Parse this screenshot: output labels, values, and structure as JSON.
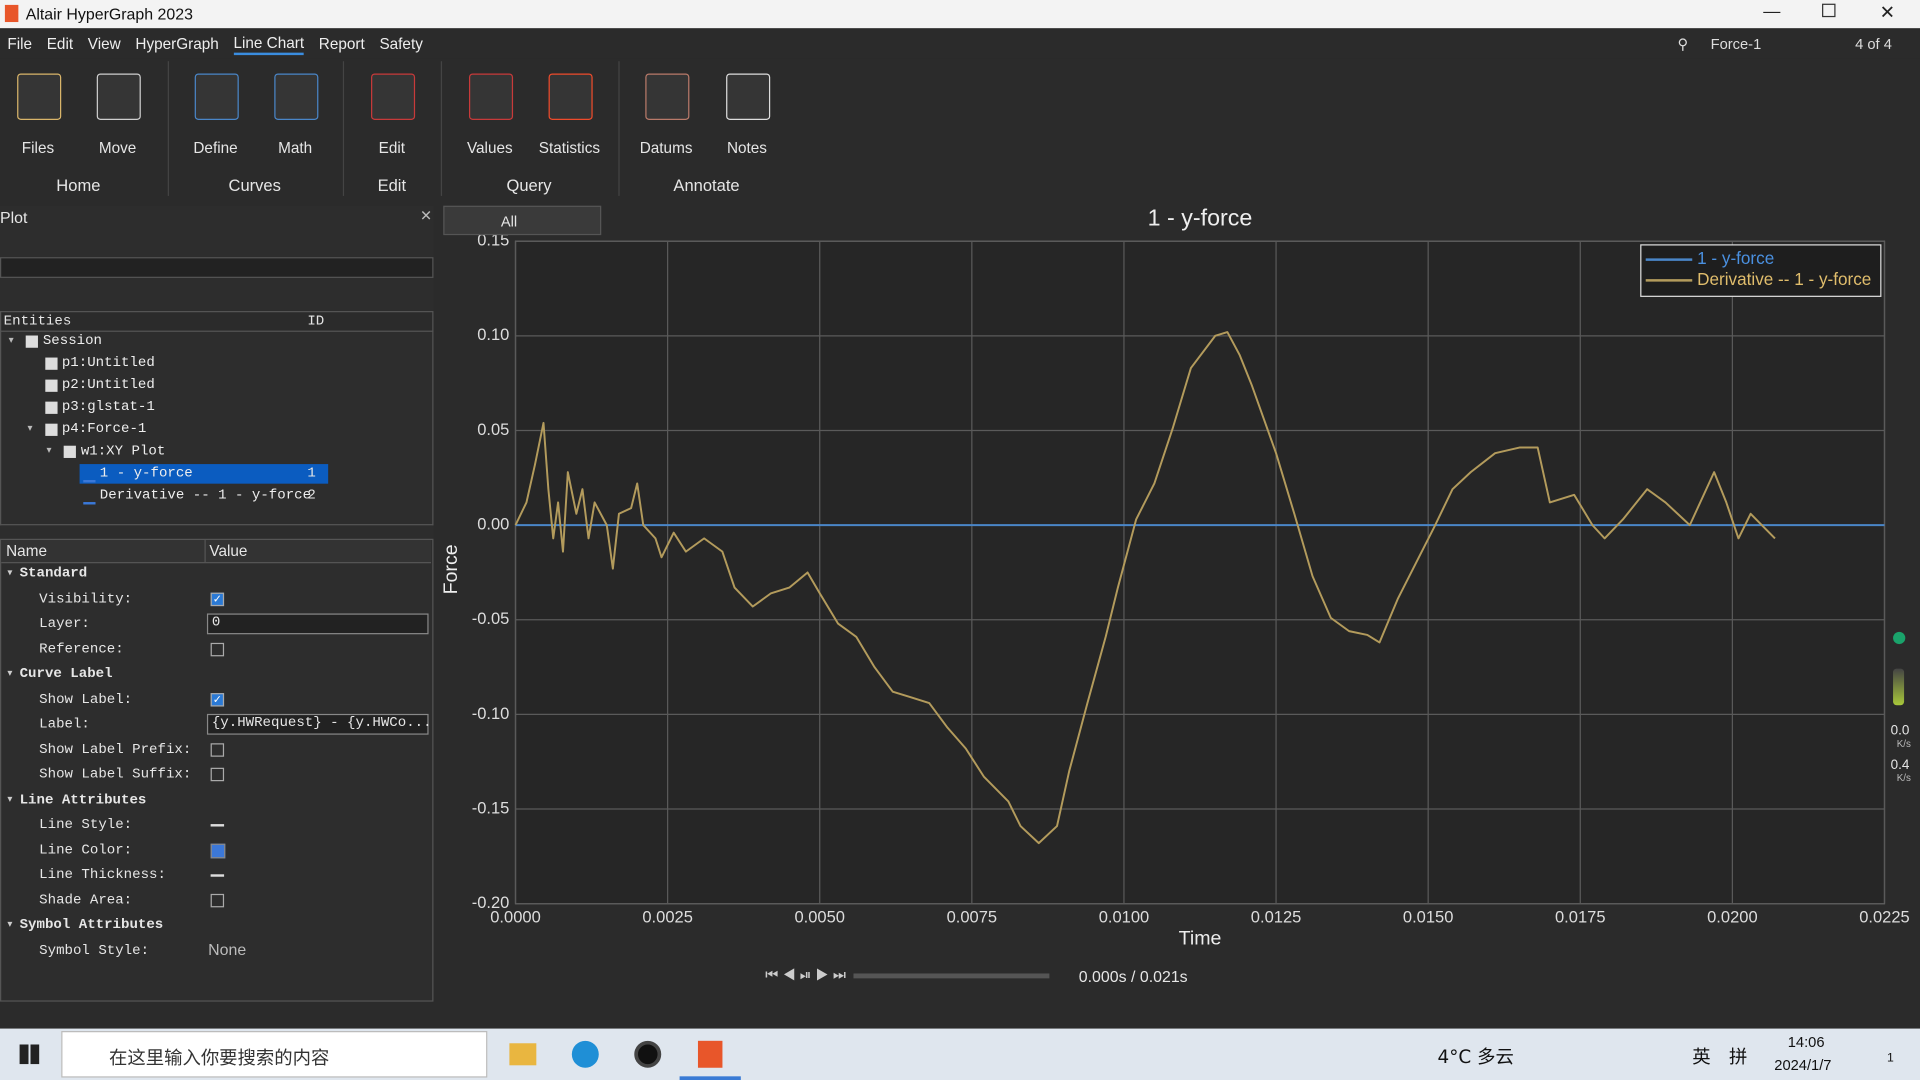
{
  "title_bar": {
    "title": "Altair HyperGraph 2023"
  },
  "menu": [
    "File",
    "Edit",
    "View",
    "HyperGraph",
    "Line Chart",
    "Report",
    "Safety"
  ],
  "menu_active": "Line Chart",
  "page_selector": {
    "page": "Force-1",
    "count": "4 of 4"
  },
  "ribbon": [
    {
      "label": "Home",
      "tools": [
        "Files",
        "Move"
      ]
    },
    {
      "label": "Curves",
      "tools": [
        "Define",
        "Math"
      ]
    },
    {
      "label": "Edit",
      "tools": [
        "Edit"
      ]
    },
    {
      "label": "Query",
      "tools": [
        "Values",
        "Statistics"
      ]
    },
    {
      "label": "Annotate",
      "tools": [
        "Datums",
        "Notes"
      ]
    }
  ],
  "panel": {
    "title": "Plot",
    "tree_header": {
      "entities": "Entities",
      "id": "ID"
    },
    "tree": [
      {
        "label": "Session",
        "children": [
          {
            "label": "p1:Untitled"
          },
          {
            "label": "p2:Untitled"
          },
          {
            "label": "p3:glstat-1"
          },
          {
            "label": "p4:Force-1",
            "children": [
              {
                "label": "w1:XY Plot",
                "children": [
                  {
                    "label": "1 - y-force",
                    "id": "1",
                    "selected": true
                  },
                  {
                    "label": "Derivative -- 1 - y-force",
                    "id": "2"
                  }
                ]
              }
            ]
          }
        ]
      }
    ],
    "properties": {
      "headers": [
        "Name",
        "Value"
      ],
      "sections": [
        {
          "title": "Standard",
          "rows": [
            {
              "name": "Visibility:",
              "checked": true
            },
            {
              "name": "Layer:",
              "value": "0"
            },
            {
              "name": "Reference:",
              "checked": false
            }
          ]
        },
        {
          "title": "Curve Label",
          "rows": [
            {
              "name": "Show Label:",
              "checked": true
            },
            {
              "name": "Label:",
              "value": "{y.HWRequest} - {y.HWCo..."
            },
            {
              "name": "Show Label Prefix:",
              "checked": false
            },
            {
              "name": "Show Label Suffix:",
              "checked": false
            }
          ]
        },
        {
          "title": "Line Attributes",
          "rows": [
            {
              "name": "Line Style:"
            },
            {
              "name": "Line Color:",
              "color": "#3c78d8"
            },
            {
              "name": "Line Thickness:"
            },
            {
              "name": "Shade Area:",
              "checked": false
            }
          ]
        },
        {
          "title": "Symbol Attributes",
          "rows": [
            {
              "name": "Symbol Style:",
              "value": "None"
            }
          ]
        }
      ]
    }
  },
  "filter": "All",
  "chart_data": {
    "type": "line",
    "title": "1 - y-force",
    "x_label": "Time",
    "y_label": "Force",
    "xlim": [
      0,
      0.0225
    ],
    "ylim": [
      -0.2,
      0.15
    ],
    "xticks": [
      {
        "value": 0,
        "label": "0.0000"
      },
      {
        "value": 0.0025,
        "label": "0.0025"
      },
      {
        "value": 0.005,
        "label": "0.0050"
      },
      {
        "value": 0.0075,
        "label": "0.0075"
      },
      {
        "value": 0.01,
        "label": "0.0100"
      },
      {
        "value": 0.0125,
        "label": "0.0125"
      },
      {
        "value": 0.015,
        "label": "0.0150"
      },
      {
        "value": 0.0175,
        "label": "0.0175"
      },
      {
        "value": 0.02,
        "label": "0.0200"
      },
      {
        "value": 0.0225,
        "label": "0.0225"
      }
    ],
    "yticks": [
      {
        "value": -0.2,
        "label": "-0.20"
      },
      -0.15,
      {
        "value": -0.1,
        "label": "-0.10"
      },
      -0.05,
      {
        "value": 0,
        "label": "0.00"
      },
      0.05,
      {
        "value": 0.1,
        "label": "0.10"
      },
      0.15
    ],
    "grid": true,
    "legend": "upper right",
    "series": [
      {
        "name": "1 - y-force",
        "color": "#4a86c8",
        "x": [
          0,
          0.0225
        ],
        "values": [
          0,
          0
        ]
      },
      {
        "name": "Derivative -- 1 - y-force",
        "color": "#b39b5c",
        "x": [
          0,
          0.00018,
          0.00032,
          0.00046,
          0.00054,
          0.00062,
          0.0007,
          0.00078,
          0.00086,
          0.001,
          0.0011,
          0.0012,
          0.0013,
          0.0015,
          0.0016,
          0.0017,
          0.0019,
          0.002,
          0.0021,
          0.0023,
          0.0024,
          0.0026,
          0.0028,
          0.0031,
          0.0034,
          0.0036,
          0.0039,
          0.0042,
          0.0045,
          0.0048,
          0.005,
          0.0053,
          0.0056,
          0.0059,
          0.0062,
          0.0065,
          0.0068,
          0.0071,
          0.0074,
          0.0077,
          0.0081,
          0.0083,
          0.0086,
          0.0089,
          0.0091,
          0.0094,
          0.0097,
          0.0099,
          0.0102,
          0.0105,
          0.0108,
          0.0111,
          0.0115,
          0.0117,
          0.0119,
          0.0121,
          0.0125,
          0.0128,
          0.0131,
          0.0134,
          0.0137,
          0.014,
          0.0142,
          0.0145,
          0.0148,
          0.0151,
          0.0154,
          0.0157,
          0.0161,
          0.0165,
          0.0168,
          0.017,
          0.0174,
          0.0177,
          0.0179,
          0.0182,
          0.0186,
          0.0189,
          0.0193,
          0.0197,
          0.0199,
          0.0201,
          0.0203,
          0.0207
        ],
        "values": [
          0,
          0.012,
          0.032,
          0.054,
          0.019,
          -0.007,
          0.012,
          -0.014,
          0.028,
          0.006,
          0.019,
          -0.007,
          0.012,
          0,
          -0.023,
          0.006,
          0.009,
          0.022,
          0,
          -0.007,
          -0.017,
          -0.004,
          -0.014,
          -0.007,
          -0.014,
          -0.033,
          -0.043,
          -0.036,
          -0.033,
          -0.025,
          -0.036,
          -0.052,
          -0.059,
          -0.075,
          -0.088,
          -0.091,
          -0.094,
          -0.107,
          -0.118,
          -0.133,
          -0.146,
          -0.159,
          -0.168,
          -0.159,
          -0.13,
          -0.094,
          -0.059,
          -0.033,
          0.003,
          0.022,
          0.051,
          0.083,
          0.1,
          0.102,
          0.09,
          0.074,
          0.038,
          0.006,
          -0.027,
          -0.049,
          -0.056,
          -0.058,
          -0.062,
          -0.039,
          -0.02,
          -0.001,
          0.019,
          0.028,
          0.038,
          0.041,
          0.041,
          0.012,
          0.016,
          0,
          -0.007,
          0.003,
          0.019,
          0.012,
          0,
          0.028,
          0.012,
          -0.007,
          0.006,
          -0.007
        ]
      }
    ]
  },
  "animation": {
    "time": "0.000s / 0.021s"
  },
  "side_meter": [
    {
      "value": "0.0",
      "unit": "K/s"
    },
    {
      "value": "0.4",
      "unit": "K/s"
    }
  ],
  "taskbar": {
    "search": "在这里输入你要搜索的内容",
    "weather": "4°C 多云",
    "ime": "英",
    "ime_mode": "拼",
    "time": "14:06",
    "date": "2024/1/7",
    "notifications": "1"
  }
}
